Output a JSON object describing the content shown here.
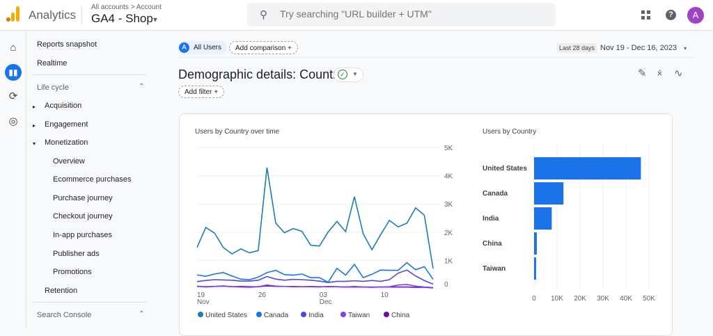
{
  "header": {
    "app_title": "Analytics",
    "breadcrumb": "All accounts > Account",
    "property": "GA4 -  Shop",
    "property_caret": "▾",
    "search_placeholder": "Try searching \"URL builder + UTM\"",
    "avatar_letter": "A",
    "help": "?"
  },
  "rail": {
    "icons": [
      "home-icon",
      "reports-icon",
      "explore-icon",
      "advertising-icon"
    ]
  },
  "sidebar": {
    "top_items": [
      "Reports snapshot",
      "Realtime"
    ],
    "lifecycle": {
      "label": "Life cycle",
      "items": [
        {
          "label": "Acquisition",
          "caret": "▸"
        },
        {
          "label": "Engagement",
          "caret": "▸"
        },
        {
          "label": "Monetization",
          "caret": "▾"
        }
      ],
      "monetization_items": [
        "Overview",
        "Ecommerce purchases",
        "Purchase journey",
        "Checkout journey",
        "In-app purchases",
        "Publisher ads",
        "Promotions"
      ],
      "retention": "Retention"
    },
    "search_console": "Search Console"
  },
  "toolbar": {
    "segment_letter": "A",
    "segment": "All Users",
    "add_comparison": "Add comparison  +",
    "date_preset": "Last 28 days",
    "date_range": "Nov 19 - Dec 16, 2023",
    "date_caret": "▾"
  },
  "page": {
    "title": "Demographic details: Country",
    "add_filter": "Add filter  +"
  },
  "chart_data": [
    {
      "type": "line",
      "title": "Users by Country over time",
      "x": [
        "Nov 19",
        "Nov 20",
        "Nov 21",
        "Nov 22",
        "Nov 23",
        "Nov 24",
        "Nov 25",
        "Nov 26",
        "Nov 27",
        "Nov 28",
        "Nov 29",
        "Nov 30",
        "Dec 01",
        "Dec 02",
        "Dec 03",
        "Dec 04",
        "Dec 05",
        "Dec 06",
        "Dec 07",
        "Dec 08",
        "Dec 09",
        "Dec 10",
        "Dec 11",
        "Dec 12",
        "Dec 13",
        "Dec 14",
        "Dec 15",
        "Dec 16"
      ],
      "xticks": [
        {
          "label": "19",
          "sub": "Nov",
          "index": 0
        },
        {
          "label": "26",
          "sub": "",
          "index": 7
        },
        {
          "label": "03",
          "sub": "Dec",
          "index": 14
        },
        {
          "label": "10",
          "sub": "",
          "index": 21
        }
      ],
      "yticks": [
        "0",
        "1K",
        "2K",
        "3K",
        "4K",
        "5K"
      ],
      "ylim": [
        0,
        5000
      ],
      "y_axis_side": "right",
      "grid": true,
      "legend": "bottom",
      "series": [
        {
          "name": "United States",
          "color": "#1f7bb6",
          "values": [
            1460,
            2170,
            1970,
            1460,
            1230,
            1410,
            1270,
            1350,
            4290,
            2320,
            1980,
            2130,
            2030,
            1540,
            1510,
            2010,
            2380,
            2020,
            3260,
            1950,
            1380,
            1910,
            2420,
            2190,
            2320,
            2860,
            2600,
            710
          ]
        },
        {
          "name": "Canada",
          "color": "#1a73e8",
          "values": [
            490,
            440,
            520,
            570,
            450,
            340,
            320,
            410,
            570,
            650,
            500,
            480,
            520,
            390,
            390,
            230,
            720,
            480,
            860,
            390,
            510,
            660,
            650,
            650,
            920,
            670,
            780,
            330
          ]
        },
        {
          "name": "India",
          "color": "#4f46e5",
          "values": [
            250,
            290,
            320,
            310,
            300,
            270,
            270,
            300,
            430,
            340,
            300,
            330,
            320,
            300,
            270,
            220,
            260,
            260,
            280,
            260,
            290,
            260,
            320,
            550,
            660,
            450,
            290,
            160
          ]
        },
        {
          "name": "Taiwan",
          "color": "#7e3ff2",
          "values": [
            90,
            60,
            80,
            100,
            70,
            60,
            50,
            70,
            130,
            90,
            80,
            80,
            70,
            70,
            60,
            80,
            70,
            60,
            80,
            60,
            60,
            60,
            70,
            130,
            150,
            90,
            60,
            40
          ]
        },
        {
          "name": "China",
          "color": "#6a0dad",
          "values": [
            80,
            70,
            80,
            90,
            70,
            80,
            70,
            70,
            100,
            80,
            80,
            70,
            70,
            80,
            70,
            70,
            70,
            60,
            60,
            60,
            50,
            60,
            60,
            60,
            60,
            50,
            50,
            30
          ]
        }
      ]
    },
    {
      "type": "bar",
      "orientation": "horizontal",
      "title": "Users by Country",
      "color": "#1a73e8",
      "categories": [
        "United States",
        "Canada",
        "India",
        "China",
        "Taiwan"
      ],
      "values": [
        46500,
        12800,
        7700,
        1200,
        900
      ],
      "xticks": [
        "0",
        "10K",
        "20K",
        "30K",
        "40K",
        "50K"
      ],
      "xlim": [
        0,
        50000
      ],
      "grid": true
    }
  ]
}
